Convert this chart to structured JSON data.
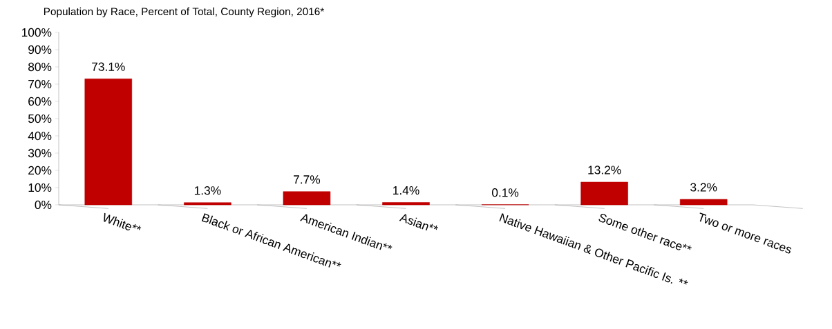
{
  "chart_data": {
    "type": "bar",
    "title": "Population by Race, Percent of Total, County Region, 2016*",
    "categories": [
      "White**",
      "Black or African American**",
      "American Indian**",
      "Asian**",
      "Native Hawaiian & Other Pacific Is. **",
      "Some other race**",
      "Two or more races"
    ],
    "values": [
      73.1,
      1.3,
      7.7,
      1.4,
      0.1,
      13.2,
      3.2
    ],
    "value_labels": [
      "73.1%",
      "1.3%",
      "7.7%",
      "1.4%",
      "0.1%",
      "13.2%",
      "3.2%"
    ],
    "color": "#c00000",
    "ylim": [
      0,
      100
    ],
    "yticks": [
      {
        "value": 0,
        "label": "0%"
      },
      {
        "value": 10,
        "label": "10%"
      },
      {
        "value": 20,
        "label": "20%"
      },
      {
        "value": 30,
        "label": "30%"
      },
      {
        "value": 40,
        "label": "40%"
      },
      {
        "value": 50,
        "label": "50%"
      },
      {
        "value": 60,
        "label": "60%"
      },
      {
        "value": 70,
        "label": "70%"
      },
      {
        "value": 80,
        "label": "80%"
      },
      {
        "value": 90,
        "label": "90%"
      },
      {
        "value": 100,
        "label": "100%"
      }
    ]
  }
}
